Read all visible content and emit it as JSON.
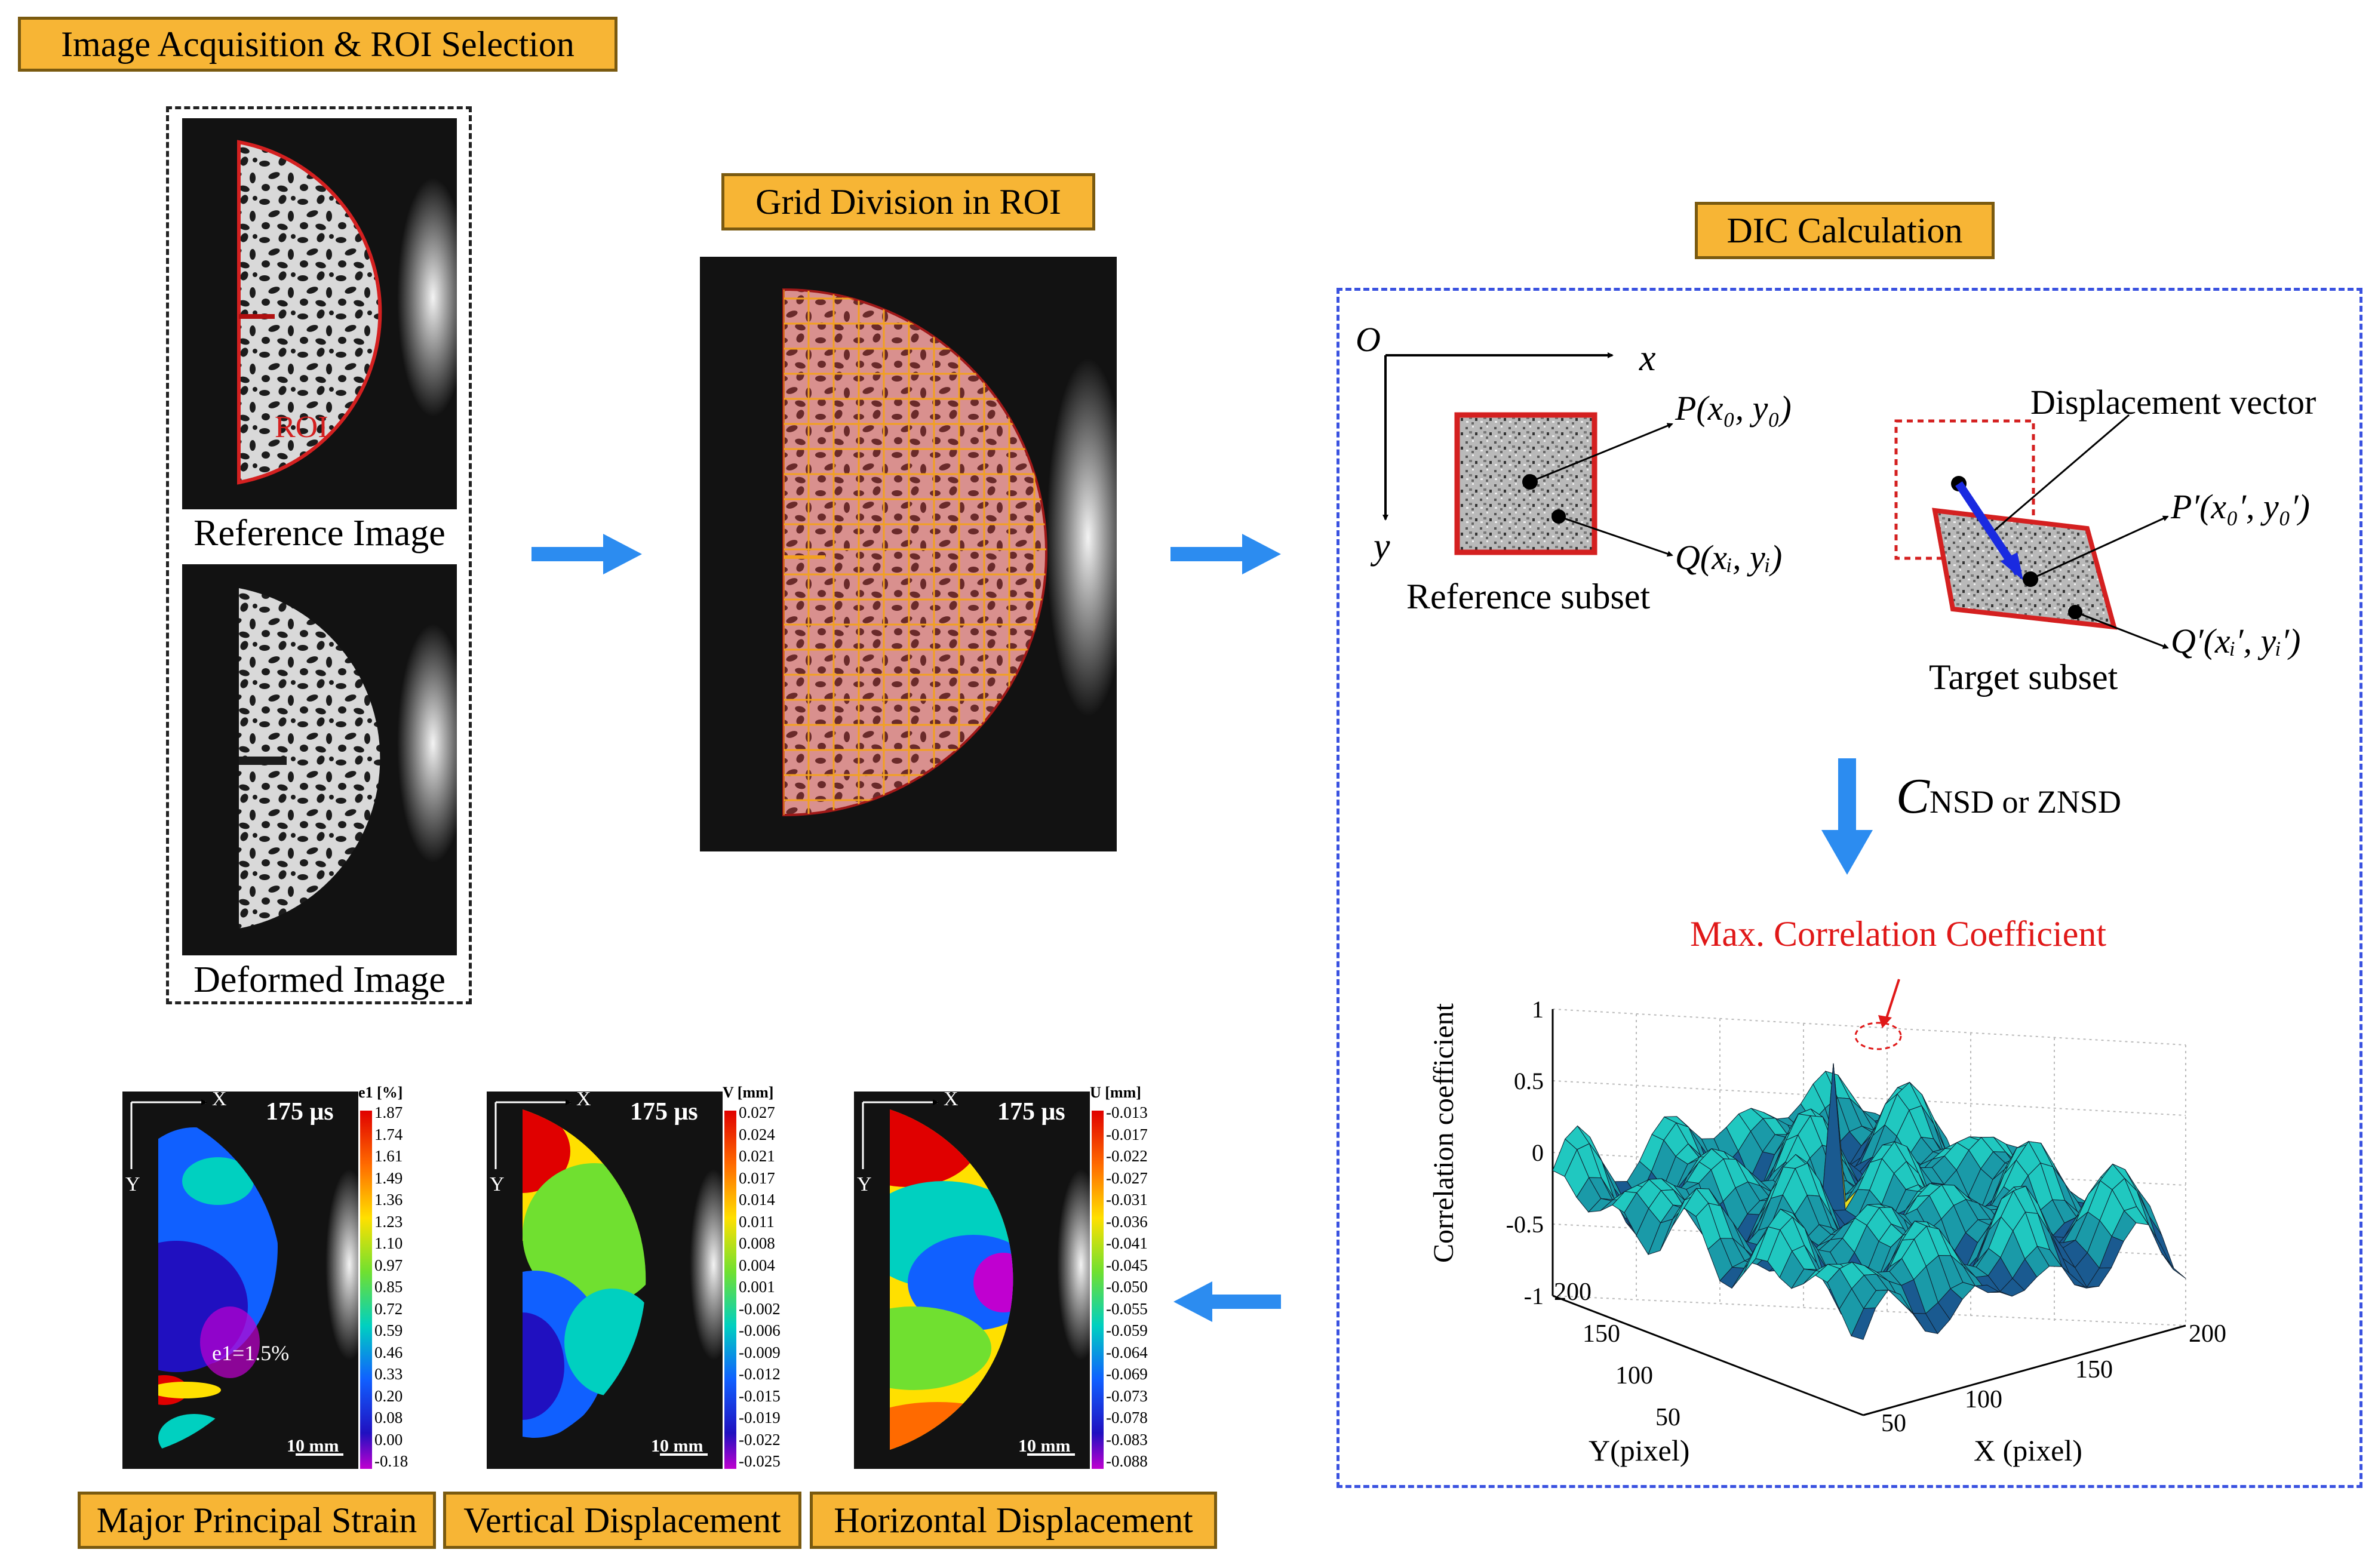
{
  "stages": {
    "acquisition": "Image Acquisition & ROI Selection",
    "grid": "Grid Division in ROI",
    "dic": "DIC Calculation"
  },
  "acquisition": {
    "reference_caption": "Reference Image",
    "deformed_caption": "Deformed Image",
    "roi_label": "ROI"
  },
  "dic": {
    "origin": "O",
    "x_axis": "x",
    "y_axis": "y",
    "p_label": "P(x₀, y₀)",
    "q_label": "Q(xᵢ, yᵢ)",
    "reference_subset": "Reference subset",
    "target_subset": "Target subset",
    "displacement_vector": "Displacement vector",
    "p_prime_label": "P′(x₀′, y₀′)",
    "q_prime_label": "Q′(xᵢ′, yᵢ′)",
    "criterion_symbol": "C",
    "criterion_subscript": "NSD or ZNSD"
  },
  "chart_data": {
    "type": "surface",
    "title": "Max. Correlation Coefficient",
    "zlabel": "Correlation coefficient",
    "xlabel": "X (pixel)",
    "ylabel": "Y(pixel)",
    "zticks": [
      "1",
      "0.5",
      "0",
      "-0.5",
      "-1"
    ],
    "xticks": [
      "50",
      "100",
      "150",
      "200"
    ],
    "yticks": [
      "200",
      "150",
      "100",
      "50"
    ],
    "zlim": [
      -1,
      1
    ],
    "xlim": [
      50,
      200
    ],
    "ylim": [
      50,
      200
    ],
    "peak_value": 1
  },
  "results": [
    {
      "caption": "Major Principal Strain",
      "time": "175 μs",
      "unit": "e1 [%]",
      "axis_x": "X",
      "axis_y": "Y",
      "scale": "10 mm",
      "annotation": "e1=1.5%",
      "ticks": [
        "1.87",
        "1.74",
        "1.61",
        "1.49",
        "1.36",
        "1.23",
        "1.10",
        "0.97",
        "0.85",
        "0.72",
        "0.59",
        "0.46",
        "0.33",
        "0.20",
        "0.08",
        "0.00",
        "-0.18"
      ]
    },
    {
      "caption": "Vertical Displacement",
      "time": "175 μs",
      "unit": "V [mm]",
      "axis_x": "X",
      "axis_y": "Y",
      "scale": "10 mm",
      "ticks": [
        "0.027",
        "0.024",
        "0.021",
        "0.017",
        "0.014",
        "0.011",
        "0.008",
        "0.004",
        "0.001",
        "-0.002",
        "-0.006",
        "-0.009",
        "-0.012",
        "-0.015",
        "-0.019",
        "-0.022",
        "-0.025"
      ]
    },
    {
      "caption": "Horizontal Displacement",
      "time": "175 μs",
      "unit": "U [mm]",
      "axis_x": "X",
      "axis_y": "Y",
      "scale": "10 mm",
      "ticks": [
        "-0.013",
        "-0.017",
        "-0.022",
        "-0.027",
        "-0.031",
        "-0.036",
        "-0.041",
        "-0.045",
        "-0.050",
        "-0.055",
        "-0.059",
        "-0.064",
        "-0.069",
        "-0.073",
        "-0.078",
        "-0.083",
        "-0.088"
      ]
    }
  ],
  "colors": {
    "tag_fill": "#f7b535",
    "flow_arrow": "#2c8cf0",
    "dic_border": "#3a52e0",
    "roi": "#d42020",
    "grid_line": "#f2a020",
    "annotation_red": "#e01818"
  }
}
